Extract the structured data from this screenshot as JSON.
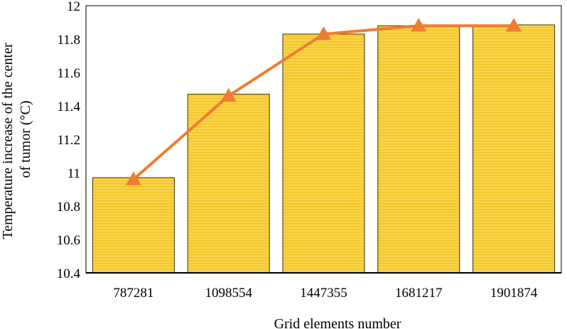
{
  "chart_data": {
    "type": "bar",
    "categories": [
      "787281",
      "1098554",
      "1447355",
      "1681217",
      "1901874"
    ],
    "series": [
      {
        "type": "bar",
        "values": [
          10.97,
          11.47,
          11.83,
          11.88,
          11.885
        ]
      },
      {
        "type": "line",
        "marker": "triangle",
        "values": [
          10.96,
          11.46,
          11.83,
          11.88,
          11.88
        ]
      }
    ],
    "xlabel": "Grid elements number",
    "ylabel_lines": [
      "Temperature increase of the center",
      "of tumor (°C)"
    ],
    "ylim": [
      10.4,
      12
    ],
    "yticks": [
      10.4,
      10.6,
      10.8,
      11,
      11.2,
      11.4,
      11.6,
      11.8,
      12
    ],
    "grid": false,
    "legend": "none",
    "colors": {
      "bar_fill": "#f7d44c",
      "bar_stripe": "#f3c11f",
      "bar_edge": "#3a3000",
      "line": "#ed7d31",
      "axis": "#000000"
    }
  }
}
